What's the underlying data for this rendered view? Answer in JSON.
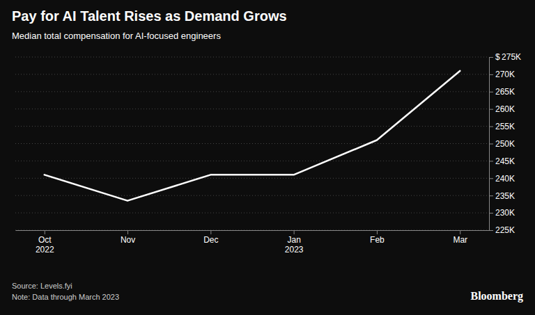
{
  "chart_data": {
    "type": "line",
    "title": "Pay for AI Talent Rises as Demand Grows",
    "subtitle": "Median total compensation for AI-focused engineers",
    "categories": [
      "Oct\n2022",
      "Nov",
      "Dec",
      "Jan\n2023",
      "Feb",
      "Mar"
    ],
    "values": [
      241000,
      233500,
      241000,
      241000,
      251000,
      271000
    ],
    "color": "#ffffff",
    "ylim": [
      225000,
      275000
    ],
    "yticks": [
      {
        "value": 225000,
        "label": "225K"
      },
      {
        "value": 230000,
        "label": "230K"
      },
      {
        "value": 235000,
        "label": "235K"
      },
      {
        "value": 240000,
        "label": "240K"
      },
      {
        "value": 245000,
        "label": "245K"
      },
      {
        "value": 250000,
        "label": "250K"
      },
      {
        "value": 255000,
        "label": "255K"
      },
      {
        "value": 260000,
        "label": "260K"
      },
      {
        "value": 265000,
        "label": "265K"
      },
      {
        "value": 270000,
        "label": "270K"
      },
      {
        "value": 275000,
        "label": "$ 275K"
      }
    ],
    "grid": true,
    "annotations": [
      "Source: Levels.fyi\nNote: Data through March 2023",
      "Bloomberg"
    ]
  }
}
